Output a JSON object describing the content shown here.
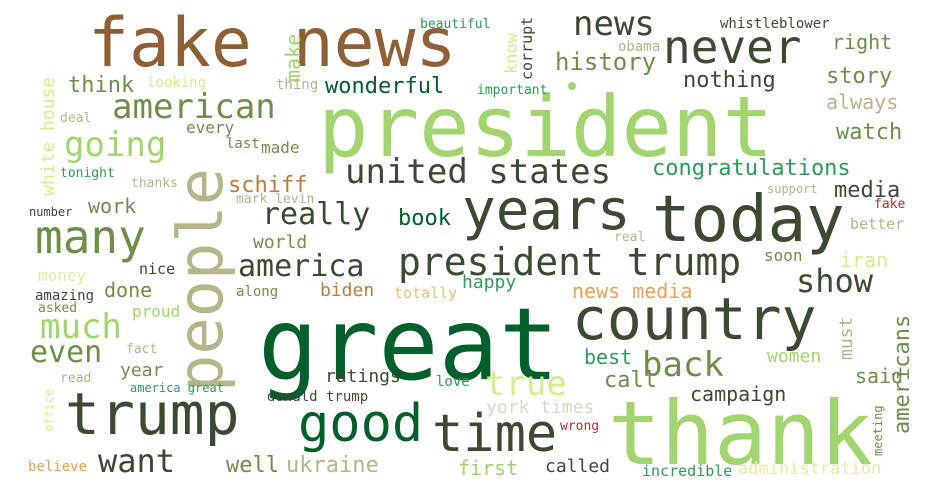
{
  "colors": {
    "background": "#ffffff",
    "dark_green": "#005f2a",
    "olive_dark": "#3d4a32",
    "light_green": "#a2d46f",
    "tan": "#b7b48a",
    "brown": "#8f6036",
    "orange": "#e9a25c",
    "red": "#b2322f"
  },
  "words": {
    "great": "great",
    "thank": "thank",
    "president": "president",
    "fake_news": "fake news",
    "today": "today",
    "country": "country",
    "people": "people",
    "trump": "trump",
    "years": "years",
    "news": "news",
    "never": "never",
    "good": "good",
    "time": "time",
    "many": "many",
    "american": "american",
    "going": "going",
    "president_trump": "president trump",
    "united_states": "united states",
    "really": "really",
    "america": "america",
    "much": "much",
    "back": "back",
    "true": "true",
    "show": "show",
    "want": "want",
    "even": "even",
    "history": "history",
    "nothing": "nothing",
    "story": "story",
    "think": "think",
    "wonderful": "wonderful",
    "always": "always",
    "watch": "watch",
    "congratulations": "congratulations",
    "media": "media",
    "schiff": "schiff",
    "book": "book",
    "work": "work",
    "world": "world",
    "right": "right",
    "make": "make",
    "know": "know",
    "corrupt": "corrupt",
    "obama": "obama",
    "beautiful": "beautiful",
    "whistleblower": "whistleblower",
    "looking": "looking",
    "thing": "thing",
    "important": "important",
    "white_house": "white house",
    "every": "every",
    "made": "made",
    "last": "last",
    "deal": "deal",
    "tonight": "tonight",
    "thanks": "thanks",
    "mark_levin": "mark levin",
    "number": "number",
    "support": "support",
    "fake": "fake",
    "better": "better",
    "real": "real",
    "soon": "soon",
    "iran": "iran",
    "biden": "biden",
    "totally": "totally",
    "happy": "happy",
    "news_media": "news media",
    "money": "money",
    "nice": "nice",
    "done": "done",
    "amazing": "amazing",
    "asked": "asked",
    "along": "along",
    "proud": "proud",
    "must": "must",
    "best": "best",
    "women": "women",
    "americans": "americans",
    "ratings": "ratings",
    "call": "call",
    "said": "said",
    "year": "year",
    "fact": "fact",
    "read": "read",
    "america_great": "america great",
    "office": "office",
    "love": "love",
    "donald_trump": "donald trump",
    "york_times": "york times",
    "campaign": "campaign",
    "meeting": "meeting",
    "wrong": "wrong",
    "believe": "believe",
    "well": "well",
    "ukraine": "ukraine",
    "first": "first",
    "called": "called",
    "incredible": "incredible",
    "administration": "administration"
  }
}
